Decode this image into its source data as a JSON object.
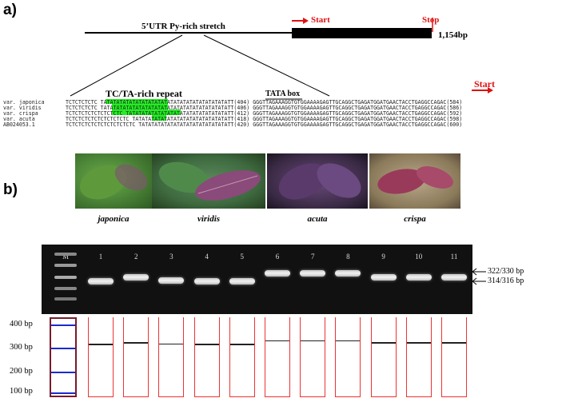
{
  "panel_a": {
    "label": "a)",
    "utr_label": "5’UTR Py-rich stretch",
    "start_label": "Start",
    "stop_label": "Stop",
    "length_label": "1,154bp",
    "repeat_label": "TC/TA-rich repeat",
    "tata_label": "TATA box",
    "start_label_2": "Start",
    "sequences": [
      {
        "name": "var. japonica",
        "seq": "TCTCTCTCTC TATATATATATATATATATATATATATATATATATATATATT(404) GGGTTAGAAAGGTGTGGAAAAGAGTTGCAGGCTGAGATGGATGAACTACCTGAGGCCAGAC(584)"
      },
      {
        "name": "var. viridis",
        "seq": "TCTCTCTCTC TATATATATATATATATATATATATATATATATATATATATT(406) GGGTTAGAAAGGTGTGGAAAAGAGTTGCAGGCTGAGATGGATGAACTACCTGAGGCCAGAC(586)"
      },
      {
        "name": "var. crispa",
        "seq": "TCTCTCTCTCTCTCTCTC TATATATATATATATATATATATATATATATATT(412) GGGTTAGAAAGGTGTGGAAAAGAGTTGCAGGCTGAGATGGATGAACTACCTGAGGCCAGAC(592)"
      },
      {
        "name": "var. acuta",
        "seq": "TCTCTCTCTCTCTCTCTCTC TATATATATATATATATATATATATATATATT(418) GGGTTAGAAAGGTGTGGAAAAGAGTTGCAGGCTGAGATGGATGAACTACCTGAGGCCAGAC(598)"
      },
      {
        "name": "AB024053.1",
        "seq": "TCTCTCTCTCTCTCTCTCTCTC TATATATATATATATATATATATATATATT(420) GGGTTAGAAAGGTGTGGAAAAGAGTTGCAGGCTGAGATGGATGAACTACCTGAGGCCAGAC(600)"
      }
    ]
  },
  "panel_b": {
    "label": "b)",
    "photos": [
      {
        "caption": "japonica",
        "color": "#4f8a3a"
      },
      {
        "caption": "viridis",
        "color": "#3f7a48"
      },
      {
        "caption": "acuta",
        "color": "#4a2c55"
      },
      {
        "caption": "crispa",
        "color": "#8a3a55"
      }
    ],
    "gel": {
      "marker_label": "M",
      "lanes": [
        "1",
        "2",
        "3",
        "4",
        "5",
        "6",
        "7",
        "8",
        "9",
        "10",
        "11"
      ],
      "band_upper_label": "322/330 bp",
      "band_lower_label": "314/316 bp"
    },
    "schematic": {
      "y_labels": [
        "400 bp",
        "300 bp",
        "200 bp",
        "100 bp"
      ],
      "band_sizes_bp": [
        314,
        322,
        316,
        314,
        314,
        330,
        330,
        330,
        322,
        322,
        322
      ]
    },
    "colors": {
      "arrow": "#e01010",
      "highlight": "#22ee22",
      "lane_box": "#e33333",
      "ladder_box": "#7a1a2a",
      "ladder_line": "#1a2ad0"
    }
  }
}
